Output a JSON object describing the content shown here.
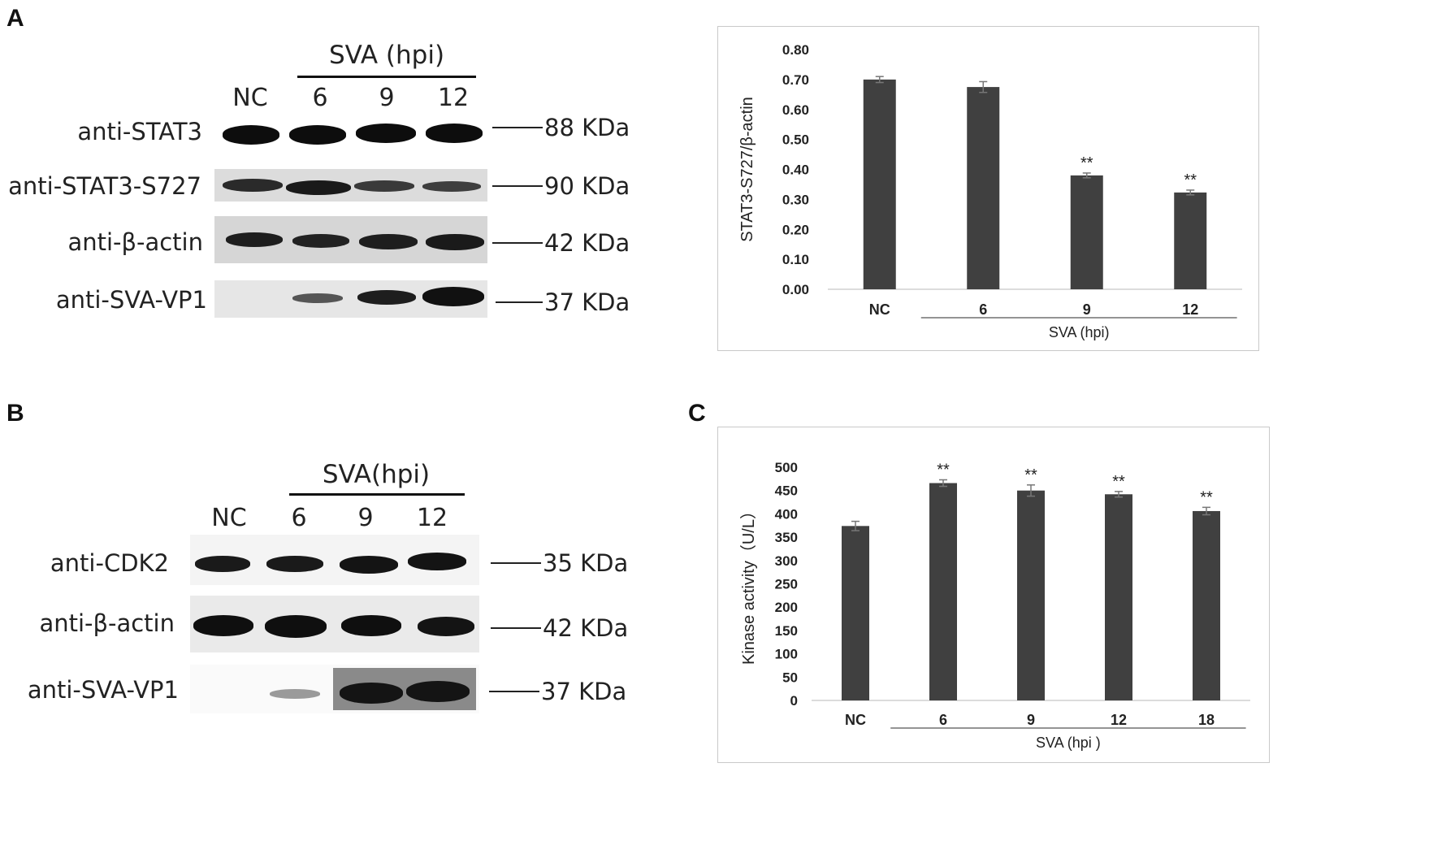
{
  "panels": {
    "A": {
      "letter": "A",
      "group_label": "SVA (hpi)",
      "lanes": [
        "NC",
        "6",
        "9",
        "12"
      ],
      "blots": [
        {
          "label": "anti-STAT3",
          "mw": "88 KDa"
        },
        {
          "label": "anti-STAT3-S727",
          "mw": "90 KDa"
        },
        {
          "label": "anti-β-actin",
          "mw": "42 KDa"
        },
        {
          "label": "anti-SVA-VP1",
          "mw": "37 KDa"
        }
      ]
    },
    "B": {
      "letter": "B",
      "group_label": "SVA(hpi)",
      "lanes": [
        "NC",
        "6",
        "9",
        "12"
      ],
      "blots": [
        {
          "label": "anti-CDK2",
          "mw": "35 KDa"
        },
        {
          "label": "anti-β-actin",
          "mw": "42 KDa"
        },
        {
          "label": "anti-SVA-VP1",
          "mw": "37 KDa"
        }
      ]
    },
    "C": {
      "letter": "C"
    }
  },
  "chart_data": [
    {
      "type": "bar",
      "panel": "A",
      "categories": [
        "NC",
        "6",
        "9",
        "12"
      ],
      "values": [
        0.7,
        0.675,
        0.38,
        0.323
      ],
      "errors": [
        0.01,
        0.018,
        0.008,
        0.008
      ],
      "significance": [
        "",
        "",
        "**",
        "**"
      ],
      "ylabel": "STAT3-S727/β-actin",
      "xlabel": "SVA (hpi)",
      "yticks": [
        "0.00",
        "0.10",
        "0.20",
        "0.30",
        "0.40",
        "0.50",
        "0.60",
        "0.70",
        "0.80"
      ],
      "ylim": [
        0,
        0.8
      ],
      "bar_color": "#404040",
      "grid": false
    },
    {
      "type": "bar",
      "panel": "C",
      "categories": [
        "NC",
        "6",
        "9",
        "12",
        "18"
      ],
      "values": [
        374,
        466,
        450,
        442,
        406
      ],
      "errors": [
        10,
        7,
        12,
        6,
        8
      ],
      "significance": [
        "",
        "**",
        "**",
        "**",
        "**"
      ],
      "ylabel": "Kinase activity（U/L）",
      "xlabel": "SVA (hpi )",
      "yticks": [
        "0",
        "50",
        "100",
        "150",
        "200",
        "250",
        "300",
        "350",
        "400",
        "450",
        "500"
      ],
      "ylim": [
        0,
        500
      ],
      "bar_color": "#404040",
      "grid": false
    }
  ]
}
